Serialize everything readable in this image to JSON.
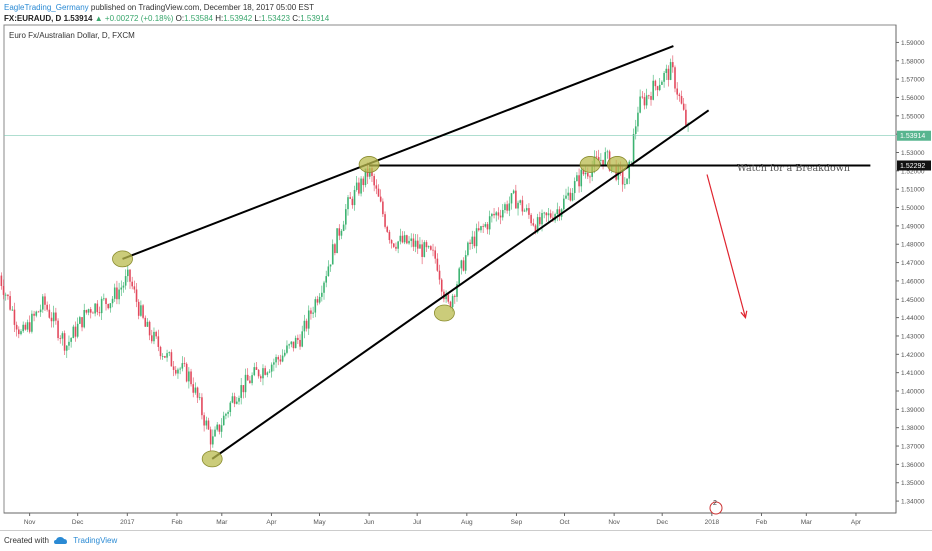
{
  "header": {
    "author": "EagleTrading_Germany",
    "published_text": "published on TradingView.com, December 18, 2017 05:00 EST",
    "symbol": "FX:EURAUD, D",
    "last": "1.53914",
    "change": "+0.00272 (+0.18%)",
    "o_label": "O:",
    "o_value": "1.53584",
    "h_label": "H:",
    "h_value": "1.53942",
    "l_label": "L:",
    "l_value": "1.53423",
    "c_label": "C:",
    "c_value": "1.53914"
  },
  "footer": {
    "created_with": "Created with",
    "brand": "TradingView"
  },
  "colors": {
    "up": "#3cb371",
    "down": "#e2495d",
    "trend": "#000000",
    "marker_fill": "#b9bb4e",
    "arrow": "#e0242f",
    "price_line": "#7fc9b5"
  },
  "chart_data": {
    "type": "candlestick",
    "title": "Euro Fx/Australian Dollar, D, FXCM",
    "x_ticks": [
      "Nov",
      "Dec",
      "2017",
      "Feb",
      "Mar",
      "Apr",
      "May",
      "Jun",
      "Jul",
      "Aug",
      "Sep",
      "Oct",
      "Nov",
      "Dec",
      "2018",
      "Feb",
      "Mar",
      "Apr"
    ],
    "y_ticks": [
      "1.59000",
      "1.58000",
      "1.57000",
      "1.56000",
      "1.55000",
      "1.54000",
      "1.53000",
      "1.52000",
      "1.51000",
      "1.50000",
      "1.49000",
      "1.48000",
      "1.47000",
      "1.46000",
      "1.45000",
      "1.44000",
      "1.43000",
      "1.42000",
      "1.41000",
      "1.40000",
      "1.39000",
      "1.38000",
      "1.37000",
      "1.36000",
      "1.35000",
      "1.34000"
    ],
    "ylim": [
      1.3335,
      1.5995
    ],
    "price_label": "1.53914",
    "level_label": "1.52292",
    "level": 1.52292,
    "annotation": "Watch for a Breakdown",
    "timeline_badge": "2",
    "trendlines": [
      {
        "name": "upper",
        "from": {
          "x": "2016-12-29",
          "y": 1.472
        },
        "to": {
          "x": "2017-12-08",
          "y": 1.588
        }
      },
      {
        "name": "lower",
        "from": {
          "x": "2017-02-23",
          "y": 1.363
        },
        "to": {
          "x": "2017-12-30",
          "y": 1.553
        }
      },
      {
        "name": "horizontal",
        "from": {
          "x": "2017-06-01",
          "y": 1.5229
        },
        "to": {
          "x": "2018-04-10",
          "y": 1.5229
        }
      }
    ],
    "markers": [
      {
        "x": "2016-12-29",
        "y": 1.472
      },
      {
        "x": "2017-06-01",
        "y": 1.5235
      },
      {
        "x": "2017-07-18",
        "y": 1.4425
      },
      {
        "x": "2017-02-23",
        "y": 1.363
      },
      {
        "x": "2017-10-17",
        "y": 1.5235
      },
      {
        "x": "2017-11-03",
        "y": 1.5235
      }
    ],
    "arrow": {
      "from": {
        "x": "2017-12-29",
        "y": 1.518
      },
      "to": {
        "x": "2018-01-22",
        "y": 1.44
      }
    },
    "series": [
      {
        "name": "EURAUD",
        "points": [
          {
            "x": "2016-10-13",
            "y": 1.463
          },
          {
            "x": "2016-10-27",
            "y": 1.43
          },
          {
            "x": "2016-11-10",
            "y": 1.448
          },
          {
            "x": "2016-11-24",
            "y": 1.425
          },
          {
            "x": "2016-12-08",
            "y": 1.445
          },
          {
            "x": "2016-12-22",
            "y": 1.45
          },
          {
            "x": "2017-01-02",
            "y": 1.462
          },
          {
            "x": "2017-01-12",
            "y": 1.435
          },
          {
            "x": "2017-01-26",
            "y": 1.418
          },
          {
            "x": "2017-02-09",
            "y": 1.408
          },
          {
            "x": "2017-02-23",
            "y": 1.372
          },
          {
            "x": "2017-03-09",
            "y": 1.398
          },
          {
            "x": "2017-03-23",
            "y": 1.41
          },
          {
            "x": "2017-04-06",
            "y": 1.418
          },
          {
            "x": "2017-04-20",
            "y": 1.43
          },
          {
            "x": "2017-05-04",
            "y": 1.462
          },
          {
            "x": "2017-05-18",
            "y": 1.5
          },
          {
            "x": "2017-06-01",
            "y": 1.52
          },
          {
            "x": "2017-06-15",
            "y": 1.482
          },
          {
            "x": "2017-06-29",
            "y": 1.48
          },
          {
            "x": "2017-07-13",
            "y": 1.472
          },
          {
            "x": "2017-07-20",
            "y": 1.445
          },
          {
            "x": "2017-08-03",
            "y": 1.48
          },
          {
            "x": "2017-08-17",
            "y": 1.495
          },
          {
            "x": "2017-08-31",
            "y": 1.505
          },
          {
            "x": "2017-09-14",
            "y": 1.49
          },
          {
            "x": "2017-09-28",
            "y": 1.5
          },
          {
            "x": "2017-10-12",
            "y": 1.518
          },
          {
            "x": "2017-10-26",
            "y": 1.528
          },
          {
            "x": "2017-11-09",
            "y": 1.512
          },
          {
            "x": "2017-11-16",
            "y": 1.555
          },
          {
            "x": "2017-11-30",
            "y": 1.57
          },
          {
            "x": "2017-12-07",
            "y": 1.575
          },
          {
            "x": "2017-12-14",
            "y": 1.552
          },
          {
            "x": "2017-12-18",
            "y": 1.539
          }
        ]
      }
    ]
  }
}
